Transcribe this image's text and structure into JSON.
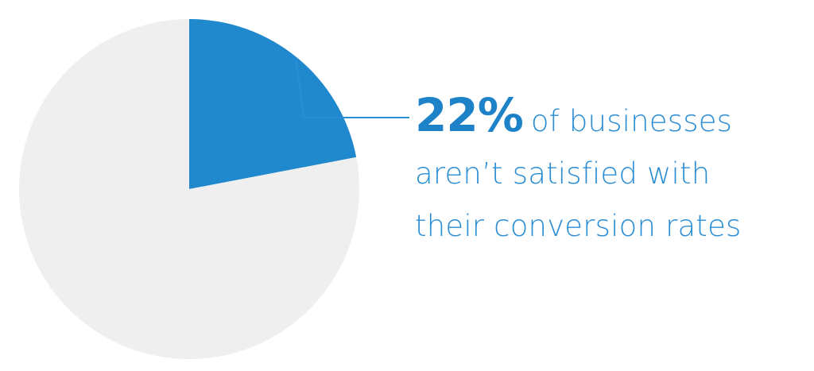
{
  "chart_data": {
    "type": "pie",
    "slices": [
      {
        "label": "22% of businesses aren’t satisfied with their conversion rates",
        "value": 22,
        "color": "#2088cc"
      },
      {
        "label": "",
        "value": 78,
        "color": "#efefef"
      }
    ]
  },
  "callout": {
    "percent": "22%",
    "line1_rest": "of businesses",
    "line2": "aren’t satisfied with",
    "line3": "their conversion rates",
    "color": "#2b8dd3",
    "leader_color": "#2b8dd3"
  }
}
